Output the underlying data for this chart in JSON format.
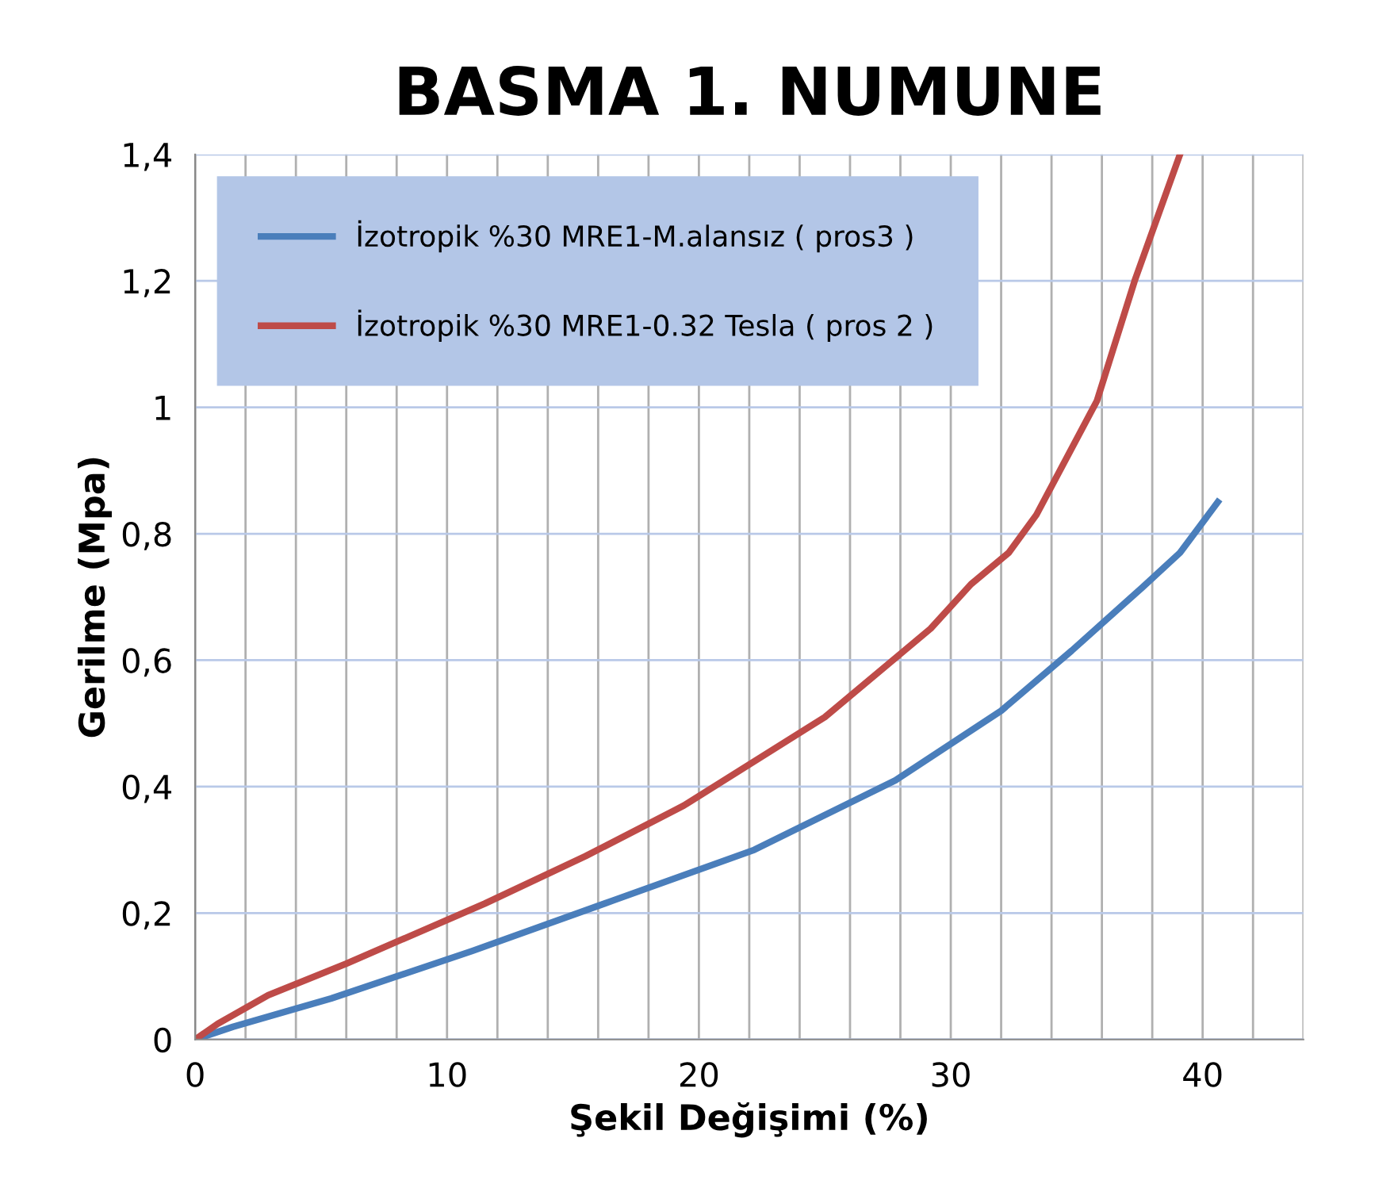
{
  "chart_data": {
    "type": "line",
    "title": "BASMA 1. NUMUNE",
    "xlabel": "Şekil Değişimi (%)",
    "ylabel": "Gerilme (Mpa)",
    "xlim": [
      0,
      44
    ],
    "xticks": [
      0,
      {
        "value": 2,
        "label": null
      },
      {
        "value": 4,
        "label": null
      },
      {
        "value": 6,
        "label": null
      },
      {
        "value": 8,
        "label": null
      },
      10,
      {
        "value": 12,
        "label": null
      },
      {
        "value": 14,
        "label": null
      },
      {
        "value": 16,
        "label": null
      },
      {
        "value": 18,
        "label": null
      },
      20,
      {
        "value": 22,
        "label": null
      },
      {
        "value": 24,
        "label": null
      },
      {
        "value": 26,
        "label": null
      },
      {
        "value": 28,
        "label": null
      },
      30,
      {
        "value": 32,
        "label": null
      },
      {
        "value": 34,
        "label": null
      },
      {
        "value": 36,
        "label": null
      },
      {
        "value": 38,
        "label": null
      },
      40,
      {
        "value": 42,
        "label": null
      },
      {
        "value": 44,
        "label": null
      }
    ],
    "ylim": [
      0,
      1.4
    ],
    "yticks": [
      0,
      {
        "value": 0.2,
        "label": "0,2"
      },
      {
        "value": 0.4,
        "label": "0,4"
      },
      {
        "value": 0.6,
        "label": "0,6"
      },
      {
        "value": 0.8,
        "label": "0,8"
      },
      1,
      {
        "value": 1.2,
        "label": "1,2"
      },
      {
        "value": 1.4,
        "label": "1,4"
      }
    ],
    "grid": true,
    "legend": "top left",
    "marker": "none",
    "line_style": "solid",
    "series": [
      {
        "name": "İzotropik %30 MRE1-M.alansız ( pros3 )",
        "color": "#4a7ebb",
        "x": [
          0,
          1.5,
          5.4,
          11.0,
          16.6,
          22.2,
          27.8,
          32.0,
          34.8,
          37.6,
          39.1,
          40.6
        ],
        "values": [
          0,
          0.02,
          0.065,
          0.14,
          0.22,
          0.3,
          0.41,
          0.52,
          0.615,
          0.715,
          0.77,
          0.85
        ]
      },
      {
        "name": "İzotropik %30 MRE1-0.32 Tesla ( pros 2 )",
        "color": "#be4b48",
        "x": [
          0,
          0.9,
          2.9,
          6.0,
          11.5,
          15.5,
          19.4,
          25.0,
          29.2,
          30.8,
          32.3,
          33.4,
          35.8,
          37.3,
          39.1
        ],
        "values": [
          0,
          0.025,
          0.07,
          0.12,
          0.215,
          0.29,
          0.37,
          0.51,
          0.65,
          0.72,
          0.77,
          0.83,
          1.01,
          1.2,
          1.4
        ]
      }
    ]
  }
}
